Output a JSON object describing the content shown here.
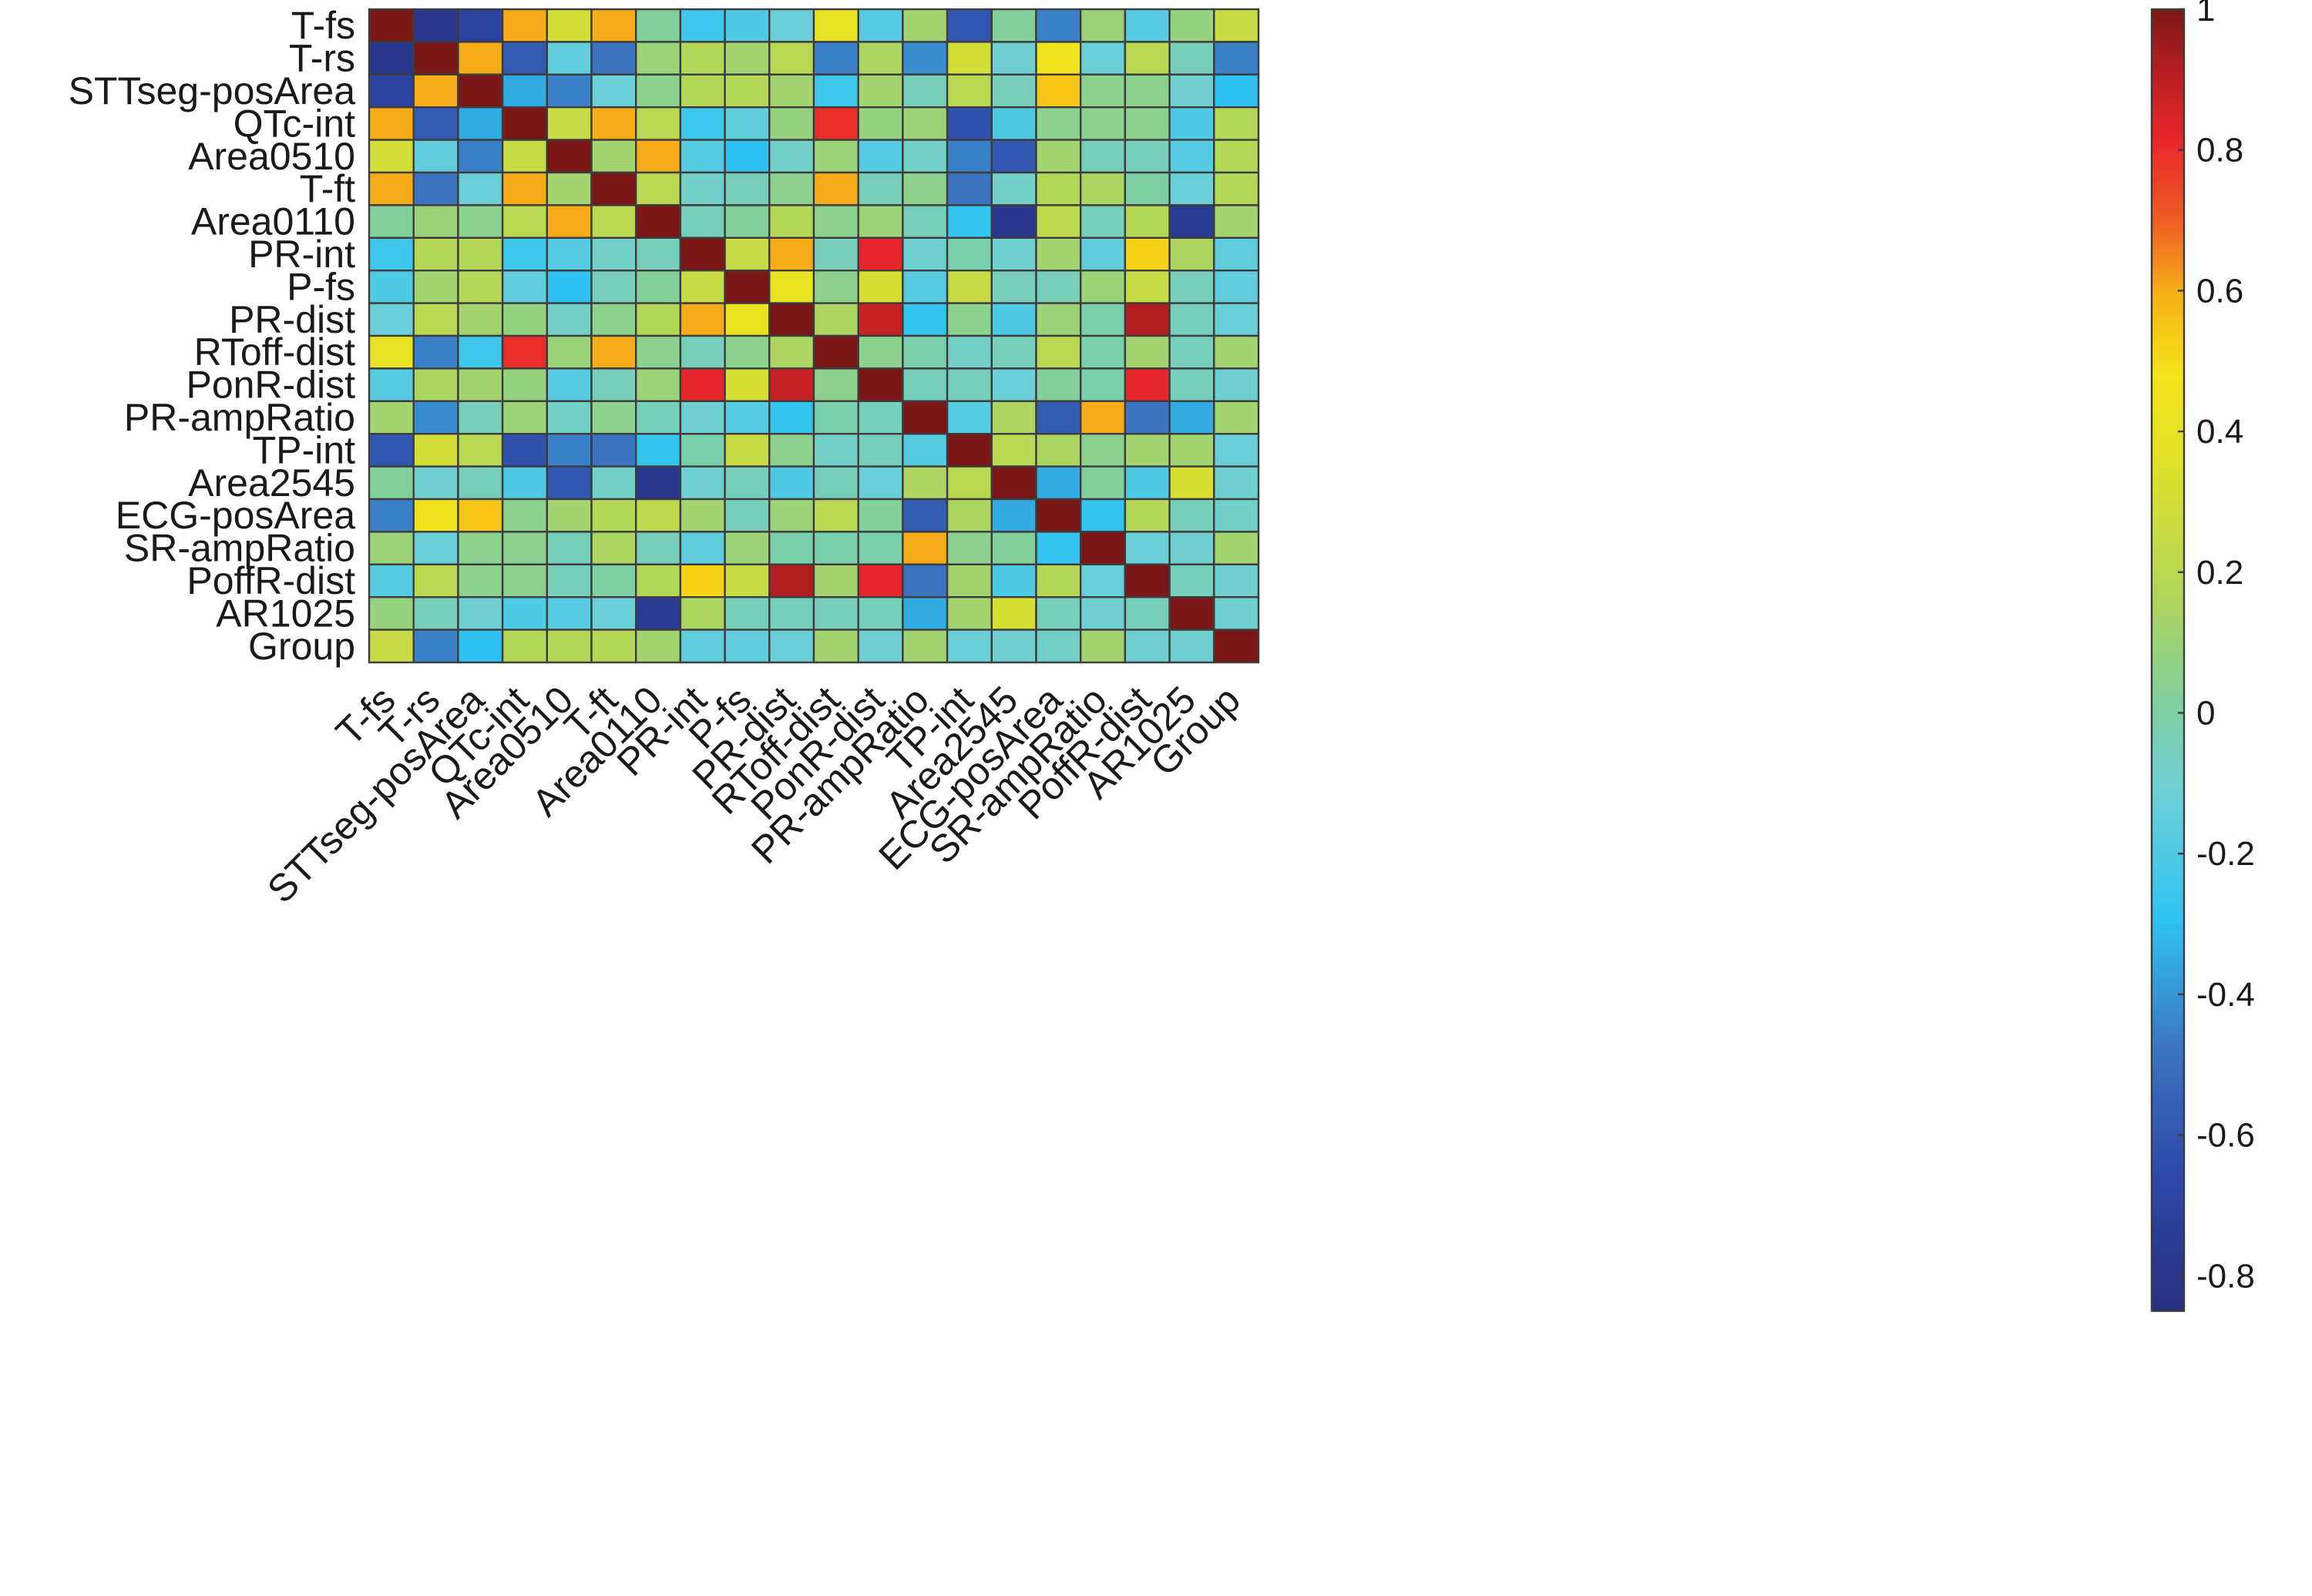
{
  "chart_data": {
    "type": "heatmap",
    "title": "",
    "xlabel": "",
    "ylabel": "",
    "labels": [
      "T-fs",
      "T-rs",
      "STTseg-posArea",
      "QTc-int",
      "Area0510",
      "T-ft",
      "Area0110",
      "PR-int",
      "P-fs",
      "PR-dist",
      "RToff-dist",
      "PonR-dist",
      "PR-ampRatio",
      "TP-int",
      "Area2545",
      "ECG-posArea",
      "SR-ampRatio",
      "PoffR-dist",
      "AR1025",
      "Group"
    ],
    "matrix": [
      [
        1.0,
        -0.78,
        -0.7,
        0.6,
        0.3,
        0.6,
        0.02,
        -0.25,
        -0.2,
        -0.12,
        0.4,
        -0.18,
        0.12,
        -0.6,
        0.02,
        -0.45,
        0.1,
        -0.18,
        0.08,
        0.25
      ],
      [
        -0.78,
        1.0,
        0.6,
        -0.58,
        -0.15,
        -0.48,
        0.1,
        0.18,
        0.12,
        0.2,
        -0.45,
        0.15,
        -0.42,
        0.3,
        -0.1,
        0.45,
        -0.12,
        0.2,
        -0.05,
        -0.45
      ],
      [
        -0.7,
        0.6,
        1.0,
        -0.35,
        -0.45,
        -0.12,
        0.05,
        0.18,
        0.18,
        0.12,
        -0.25,
        0.12,
        -0.05,
        0.2,
        -0.05,
        0.55,
        0.05,
        0.05,
        -0.1,
        -0.3
      ],
      [
        0.6,
        -0.58,
        -0.35,
        1.0,
        0.25,
        0.6,
        0.2,
        -0.25,
        -0.15,
        0.08,
        0.8,
        0.08,
        0.1,
        -0.62,
        -0.2,
        0.05,
        0.05,
        0.05,
        -0.2,
        0.18
      ],
      [
        0.3,
        -0.15,
        -0.45,
        0.25,
        1.0,
        0.12,
        0.6,
        -0.18,
        -0.3,
        -0.08,
        0.1,
        -0.18,
        -0.08,
        -0.45,
        -0.6,
        0.12,
        -0.05,
        -0.05,
        -0.18,
        0.18
      ],
      [
        0.6,
        -0.48,
        -0.12,
        0.6,
        0.12,
        1.0,
        0.2,
        -0.08,
        -0.05,
        0.05,
        0.6,
        -0.05,
        0.05,
        -0.48,
        -0.08,
        0.18,
        0.15,
        0.0,
        -0.12,
        0.18
      ],
      [
        0.02,
        0.1,
        0.05,
        0.2,
        0.6,
        0.2,
        1.0,
        -0.05,
        0.02,
        0.18,
        0.05,
        0.1,
        -0.05,
        -0.28,
        -0.78,
        0.22,
        -0.05,
        0.18,
        -0.76,
        0.12
      ],
      [
        -0.25,
        0.18,
        0.18,
        -0.25,
        -0.18,
        -0.08,
        -0.05,
        1.0,
        0.25,
        0.6,
        -0.05,
        0.82,
        -0.1,
        -0.02,
        -0.1,
        0.12,
        -0.15,
        0.52,
        0.15,
        -0.15
      ],
      [
        -0.2,
        0.12,
        0.18,
        -0.15,
        -0.3,
        -0.05,
        0.02,
        0.25,
        1.0,
        0.42,
        0.05,
        0.32,
        -0.18,
        0.25,
        -0.05,
        -0.05,
        0.1,
        0.25,
        -0.05,
        -0.15
      ],
      [
        -0.12,
        0.2,
        0.12,
        0.08,
        -0.08,
        0.05,
        0.18,
        0.6,
        0.42,
        1.0,
        0.15,
        0.88,
        -0.28,
        0.05,
        -0.2,
        0.1,
        -0.02,
        0.92,
        -0.05,
        -0.12
      ],
      [
        0.4,
        -0.45,
        -0.25,
        0.8,
        0.1,
        0.6,
        0.05,
        -0.05,
        0.05,
        0.15,
        1.0,
        0.05,
        -0.02,
        -0.08,
        -0.05,
        0.2,
        -0.02,
        0.12,
        -0.05,
        0.12
      ],
      [
        -0.18,
        0.15,
        0.12,
        0.08,
        -0.18,
        -0.05,
        0.1,
        0.82,
        0.32,
        0.88,
        0.05,
        1.0,
        -0.05,
        -0.05,
        -0.12,
        0.02,
        -0.02,
        0.82,
        -0.05,
        -0.1
      ],
      [
        0.12,
        -0.42,
        -0.05,
        0.1,
        -0.08,
        0.05,
        -0.05,
        -0.1,
        -0.18,
        -0.28,
        -0.02,
        -0.05,
        1.0,
        -0.18,
        0.15,
        -0.58,
        0.6,
        -0.48,
        -0.35,
        0.12
      ],
      [
        -0.6,
        0.3,
        0.2,
        -0.62,
        -0.45,
        -0.48,
        -0.28,
        -0.02,
        0.25,
        0.05,
        -0.08,
        -0.05,
        -0.18,
        1.0,
        0.2,
        0.15,
        0.05,
        0.12,
        0.12,
        -0.12
      ],
      [
        0.02,
        -0.1,
        -0.05,
        -0.2,
        -0.6,
        -0.08,
        -0.78,
        -0.1,
        -0.05,
        -0.2,
        -0.05,
        -0.12,
        0.15,
        0.2,
        1.0,
        -0.35,
        0.02,
        -0.2,
        0.32,
        -0.1
      ],
      [
        -0.45,
        0.45,
        0.55,
        0.05,
        0.12,
        0.18,
        0.22,
        0.12,
        -0.05,
        0.1,
        0.2,
        0.02,
        -0.58,
        0.15,
        -0.35,
        1.0,
        -0.28,
        0.18,
        -0.05,
        -0.08
      ],
      [
        0.1,
        -0.12,
        0.05,
        0.05,
        -0.05,
        0.15,
        -0.05,
        -0.15,
        0.1,
        -0.02,
        -0.02,
        -0.02,
        0.6,
        0.05,
        0.02,
        -0.28,
        1.0,
        -0.12,
        -0.1,
        0.12
      ],
      [
        -0.18,
        0.2,
        0.05,
        0.05,
        -0.05,
        0.0,
        0.18,
        0.52,
        0.25,
        0.92,
        0.12,
        0.82,
        -0.48,
        0.12,
        -0.2,
        0.18,
        -0.12,
        1.0,
        -0.05,
        -0.1
      ],
      [
        0.08,
        -0.05,
        -0.1,
        -0.2,
        -0.18,
        -0.12,
        -0.76,
        0.15,
        -0.05,
        -0.05,
        -0.05,
        -0.05,
        -0.35,
        0.12,
        0.32,
        -0.05,
        -0.1,
        -0.05,
        1.0,
        -0.1
      ],
      [
        0.25,
        -0.45,
        -0.3,
        0.18,
        0.18,
        0.18,
        0.12,
        -0.15,
        -0.15,
        -0.12,
        0.12,
        -0.1,
        0.12,
        -0.12,
        -0.1,
        -0.08,
        0.12,
        -0.1,
        -0.1,
        1.0
      ]
    ],
    "colorbar": {
      "min": -0.85,
      "max": 1.0,
      "ticks": [
        1,
        0.8,
        0.6,
        0.4,
        0.2,
        0,
        -0.2,
        -0.4,
        -0.6,
        -0.8
      ],
      "tick_labels": [
        "1",
        "0.8",
        "0.6",
        "0.4",
        "0.2",
        "0",
        "-0.2",
        "-0.4",
        "-0.6",
        "-0.8"
      ],
      "colormap": "jet",
      "colormap_stops": [
        [
          0.0,
          "#26307f"
        ],
        [
          0.1,
          "#2d46a6"
        ],
        [
          0.2,
          "#3c73c0"
        ],
        [
          0.3,
          "#2ec3f2"
        ],
        [
          0.4,
          "#6fd0d6"
        ],
        [
          0.46,
          "#7dcfa3"
        ],
        [
          0.55,
          "#b2d65a"
        ],
        [
          0.65,
          "#dfe22a"
        ],
        [
          0.72,
          "#f5e41a"
        ],
        [
          0.78,
          "#f7b217"
        ],
        [
          0.84,
          "#ee5a24"
        ],
        [
          0.9,
          "#e8262a"
        ],
        [
          0.95,
          "#b81f24"
        ],
        [
          1.0,
          "#7a1716"
        ]
      ]
    },
    "grid": true,
    "legend": "colorbar-right"
  }
}
